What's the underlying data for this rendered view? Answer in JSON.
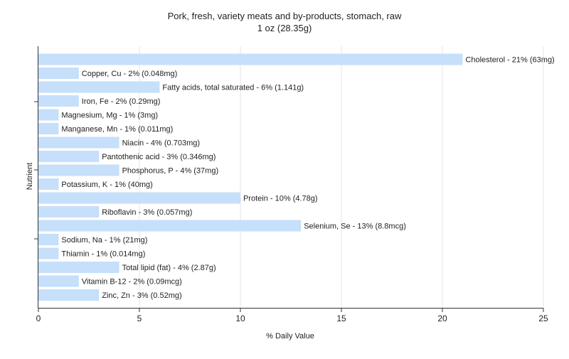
{
  "chart_data": {
    "type": "bar",
    "orientation": "horizontal",
    "title": "Pork, fresh, variety meats and by-products, stomach, raw",
    "subtitle": "1 oz (28.35g)",
    "xlabel": "% Daily Value",
    "ylabel": "Nutrient",
    "xlim": [
      0,
      25
    ],
    "xticks": [
      0,
      5,
      10,
      15,
      20,
      25
    ],
    "grid": true,
    "legend": "none",
    "bar_color": "#c6dffa",
    "categories": [
      "Cholesterol",
      "Copper, Cu",
      "Fatty acids, total saturated",
      "Iron, Fe",
      "Magnesium, Mg",
      "Manganese, Mn",
      "Niacin",
      "Pantothenic acid",
      "Phosphorus, P",
      "Potassium, K",
      "Protein",
      "Riboflavin",
      "Selenium, Se",
      "Sodium, Na",
      "Thiamin",
      "Total lipid (fat)",
      "Vitamin B-12",
      "Zinc, Zn"
    ],
    "values": [
      21,
      2,
      6,
      2,
      1,
      1,
      4,
      3,
      4,
      1,
      10,
      3,
      13,
      1,
      1,
      4,
      2,
      3
    ],
    "labels": [
      "Cholesterol - 21% (63mg)",
      "Copper, Cu - 2% (0.048mg)",
      "Fatty acids, total saturated - 6% (1.141g)",
      "Iron, Fe - 2% (0.29mg)",
      "Magnesium, Mg - 1% (3mg)",
      "Manganese, Mn - 1% (0.011mg)",
      "Niacin - 4% (0.703mg)",
      "Pantothenic acid - 3% (0.346mg)",
      "Phosphorus, P - 4% (37mg)",
      "Potassium, K - 1% (40mg)",
      "Protein - 10% (4.78g)",
      "Riboflavin - 3% (0.057mg)",
      "Selenium, Se - 13% (8.8mcg)",
      "Sodium, Na - 1% (21mg)",
      "Thiamin - 1% (0.014mg)",
      "Total lipid (fat) - 4% (2.87g)",
      "Vitamin B-12 - 2% (0.09mcg)",
      "Zinc, Zn - 3% (0.52mg)"
    ]
  }
}
